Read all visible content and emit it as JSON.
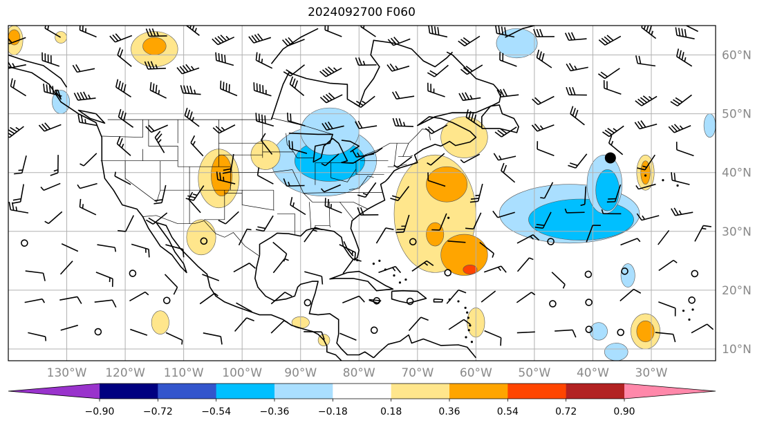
{
  "title": "2024092700 F060",
  "map": {
    "lon_min": -140,
    "lon_max": -19,
    "lat_min": 8,
    "lat_max": 65,
    "lon_ticks": [
      {
        "value": -130,
        "label": "130°W"
      },
      {
        "value": -120,
        "label": "120°W"
      },
      {
        "value": -110,
        "label": "110°W"
      },
      {
        "value": -100,
        "label": "100°W"
      },
      {
        "value": -90,
        "label": "90°W"
      },
      {
        "value": -80,
        "label": "80°W"
      },
      {
        "value": -70,
        "label": "70°W"
      },
      {
        "value": -60,
        "label": "60°W"
      },
      {
        "value": -50,
        "label": "50°W"
      },
      {
        "value": -40,
        "label": "40°W"
      },
      {
        "value": -30,
        "label": "30°W"
      }
    ],
    "lat_ticks": [
      {
        "value": 60,
        "label": "60°N"
      },
      {
        "value": 50,
        "label": "50°N"
      },
      {
        "value": 40,
        "label": "40°N"
      },
      {
        "value": 30,
        "label": "30°N"
      },
      {
        "value": 20,
        "label": "20°N"
      },
      {
        "value": 10,
        "label": "10°N"
      }
    ],
    "marker": {
      "lon": -37,
      "lat": 42.5
    }
  },
  "colorbar": {
    "colors": [
      "#9933cc",
      "#000080",
      "#3355cc",
      "#00bfff",
      "#aadfff",
      "#ffffff",
      "#ffe68c",
      "#ffa500",
      "#ff4500",
      "#b22222",
      "#ff88aa"
    ],
    "tick_labels": [
      "−0.90",
      "−0.72",
      "−0.54",
      "−0.36",
      "−0.18",
      "0.18",
      "0.36",
      "0.54",
      "0.72",
      "0.90"
    ]
  },
  "anomalies": [
    {
      "level": "neg",
      "lon": -86,
      "lat": 42,
      "rx": 9,
      "ry": 6
    },
    {
      "level": "neg2",
      "lon": -85,
      "lat": 42,
      "rx": 6,
      "ry": 3.5
    },
    {
      "level": "neg",
      "lon": -85,
      "lat": 47,
      "rx": 5,
      "ry": 4
    },
    {
      "level": "neg",
      "lon": -44,
      "lat": 33,
      "rx": 12,
      "ry": 5
    },
    {
      "level": "neg2",
      "lon": -42,
      "lat": 32,
      "rx": 9,
      "ry": 3.5
    },
    {
      "level": "neg",
      "lon": -38,
      "lat": 38,
      "rx": 3,
      "ry": 5
    },
    {
      "level": "neg2",
      "lon": -37.5,
      "lat": 37,
      "rx": 2,
      "ry": 3.5
    },
    {
      "level": "neg",
      "lon": -131,
      "lat": 52,
      "rx": 1.5,
      "ry": 2
    },
    {
      "level": "neg",
      "lon": -53,
      "lat": 62,
      "rx": 3.5,
      "ry": 2.5
    },
    {
      "level": "neg",
      "lon": -34,
      "lat": 22.5,
      "rx": 1.2,
      "ry": 2
    },
    {
      "level": "neg",
      "lon": -39,
      "lat": 13,
      "rx": 1.5,
      "ry": 1.5
    },
    {
      "level": "neg",
      "lon": -36,
      "lat": 9.5,
      "rx": 2,
      "ry": 1.5
    },
    {
      "level": "neg",
      "lon": -20,
      "lat": 48,
      "rx": 1,
      "ry": 2
    },
    {
      "level": "pos",
      "lon": -67,
      "lat": 33,
      "rx": 7,
      "ry": 10
    },
    {
      "level": "pos2",
      "lon": -65,
      "lat": 38,
      "rx": 3.5,
      "ry": 3
    },
    {
      "level": "pos2",
      "lon": -62,
      "lat": 26,
      "rx": 4,
      "ry": 3.5
    },
    {
      "level": "pos3",
      "lon": -61,
      "lat": 23.5,
      "rx": 1.2,
      "ry": 0.8
    },
    {
      "level": "pos2",
      "lon": -67,
      "lat": 29.5,
      "rx": 1.5,
      "ry": 2
    },
    {
      "level": "pos",
      "lon": -62,
      "lat": 46,
      "rx": 4,
      "ry": 3.5
    },
    {
      "level": "pos",
      "lon": -104,
      "lat": 39,
      "rx": 3.5,
      "ry": 5
    },
    {
      "level": "pos2",
      "lon": -103.5,
      "lat": 39.5,
      "rx": 1.8,
      "ry": 3.5
    },
    {
      "level": "pos",
      "lon": -107,
      "lat": 29,
      "rx": 2.5,
      "ry": 3
    },
    {
      "level": "pos",
      "lon": -96,
      "lat": 43,
      "rx": 2.5,
      "ry": 2.5
    },
    {
      "level": "pos",
      "lon": -115,
      "lat": 61,
      "rx": 4,
      "ry": 3
    },
    {
      "level": "pos2",
      "lon": -115,
      "lat": 61.5,
      "rx": 2,
      "ry": 1.5
    },
    {
      "level": "pos",
      "lon": -139,
      "lat": 62.5,
      "rx": 1.5,
      "ry": 2.5
    },
    {
      "level": "pos2",
      "lon": -139,
      "lat": 63,
      "rx": 1,
      "ry": 1.3
    },
    {
      "level": "pos",
      "lon": -31,
      "lat": 40,
      "rx": 1.5,
      "ry": 3
    },
    {
      "level": "pos2",
      "lon": -31,
      "lat": 40,
      "rx": 0.8,
      "ry": 2
    },
    {
      "level": "pos",
      "lon": -31,
      "lat": 13,
      "rx": 2.5,
      "ry": 3
    },
    {
      "level": "pos2",
      "lon": -31,
      "lat": 13,
      "rx": 1.5,
      "ry": 1.8
    },
    {
      "level": "pos",
      "lon": -114,
      "lat": 14.5,
      "rx": 1.5,
      "ry": 2
    },
    {
      "level": "pos",
      "lon": -60,
      "lat": 14.5,
      "rx": 1.5,
      "ry": 2.5
    },
    {
      "level": "pos",
      "lon": -90,
      "lat": 14.5,
      "rx": 1.5,
      "ry": 1
    },
    {
      "level": "pos",
      "lon": -131,
      "lat": 63,
      "rx": 1,
      "ry": 1
    },
    {
      "level": "pos",
      "lon": -86,
      "lat": 11.5,
      "rx": 1,
      "ry": 1
    }
  ]
}
